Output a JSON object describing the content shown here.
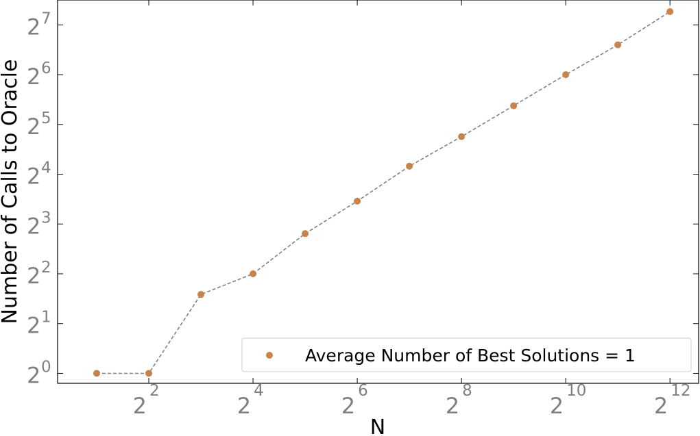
{
  "chart_data": {
    "type": "scatter",
    "xlabel": "N",
    "ylabel": "Number of Calls to Oracle",
    "x_scale": "log2",
    "y_scale": "log2",
    "xlim_log2": [
      0.25,
      12.55
    ],
    "ylim_log2": [
      -0.2,
      7.5
    ],
    "x_ticks": [
      {
        "base": "2",
        "exp": "2",
        "value": 4
      },
      {
        "base": "2",
        "exp": "4",
        "value": 16
      },
      {
        "base": "2",
        "exp": "6",
        "value": 64
      },
      {
        "base": "2",
        "exp": "8",
        "value": 256
      },
      {
        "base": "2",
        "exp": "10",
        "value": 1024
      },
      {
        "base": "2",
        "exp": "12",
        "value": 4096
      }
    ],
    "y_ticks": [
      {
        "base": "2",
        "exp": "0",
        "value": 1
      },
      {
        "base": "2",
        "exp": "1",
        "value": 2
      },
      {
        "base": "2",
        "exp": "2",
        "value": 4
      },
      {
        "base": "2",
        "exp": "3",
        "value": 8
      },
      {
        "base": "2",
        "exp": "4",
        "value": 16
      },
      {
        "base": "2",
        "exp": "5",
        "value": 32
      },
      {
        "base": "2",
        "exp": "6",
        "value": 64
      },
      {
        "base": "2",
        "exp": "7",
        "value": 128
      }
    ],
    "series": [
      {
        "name": "Average Number of Best Solutions = 1",
        "color": "#c8824a",
        "line_color": "#808080",
        "line_style": "dashed",
        "x": [
          2,
          4,
          8,
          16,
          32,
          64,
          128,
          256,
          512,
          1024,
          2048,
          4096
        ],
        "y": [
          1,
          1,
          3.0,
          4,
          7.0,
          11.0,
          17.9,
          27.0,
          41.5,
          64,
          97.0,
          154
        ]
      }
    ],
    "legend_position": "lower-right",
    "grid": false
  }
}
